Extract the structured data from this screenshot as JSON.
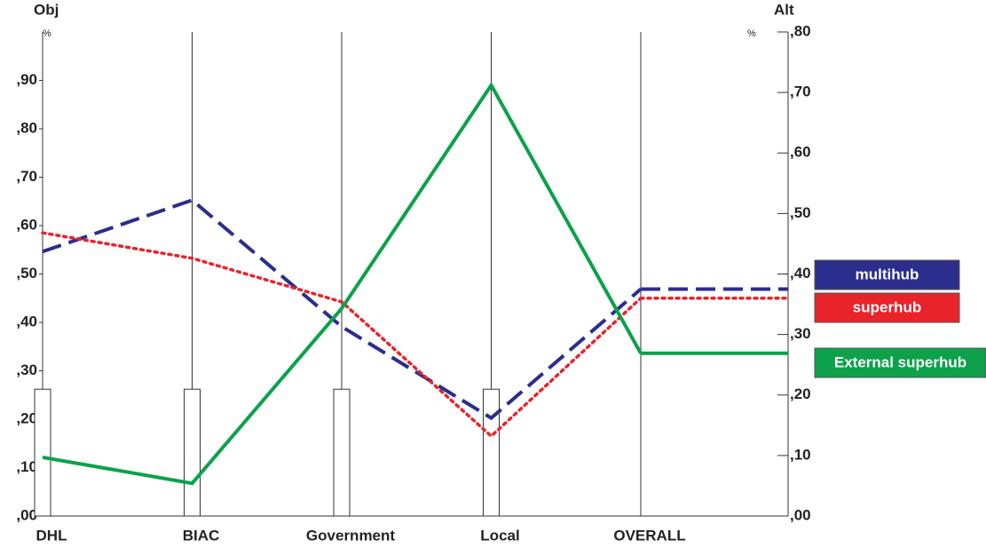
{
  "chart_data": {
    "type": "line",
    "y_label": "Obj",
    "y2_label": "Alt",
    "y_unit": "%",
    "y2_unit": "%",
    "categories": [
      "DHL",
      "BIAC",
      "Government",
      "Local",
      "OVERALL"
    ],
    "weights": [
      0.262,
      0.262,
      0.262,
      0.262,
      null
    ],
    "weight_color": "#ffffff",
    "series": [
      {
        "name": "multihub",
        "color": "#2b2e8c",
        "dash": "dashed",
        "axis": "y2",
        "values": [
          0.437,
          0.522,
          0.313,
          0.162,
          0.375
        ]
      },
      {
        "name": "superhub",
        "color": "#e8232a",
        "dash": "dotted",
        "axis": "y2",
        "values": [
          0.468,
          0.426,
          0.354,
          0.132,
          0.36
        ]
      },
      {
        "name": "External superhub",
        "color": "#0ca14a",
        "dash": "solid",
        "axis": "y2",
        "values": [
          0.097,
          0.054,
          0.343,
          0.712,
          0.269
        ]
      }
    ],
    "ylim": [
      0,
      1.0
    ],
    "yticks": [
      {
        "value": 0,
        "label": ",00"
      },
      {
        "value": 0.1,
        "label": ",10"
      },
      {
        "value": 0.2,
        "label": ",20"
      },
      {
        "value": 0.3,
        "label": ",30"
      },
      {
        "value": 0.4,
        "label": ",40"
      },
      {
        "value": 0.5,
        "label": ",50"
      },
      {
        "value": 0.6,
        "label": ",60"
      },
      {
        "value": 0.7,
        "label": ",70"
      },
      {
        "value": 0.8,
        "label": ",80"
      },
      {
        "value": 0.9,
        "label": ",90"
      }
    ],
    "y2lim": [
      0,
      0.8
    ],
    "y2ticks": [
      {
        "value": 0,
        "label": ",00"
      },
      {
        "value": 0.1,
        "label": ",10"
      },
      {
        "value": 0.2,
        "label": ",20"
      },
      {
        "value": 0.3,
        "label": ",30"
      },
      {
        "value": 0.4,
        "label": ",40"
      },
      {
        "value": 0.5,
        "label": ",50"
      },
      {
        "value": 0.6,
        "label": ",60"
      },
      {
        "value": 0.7,
        "label": ",70"
      },
      {
        "value": 0.8,
        "label": ",80"
      }
    ]
  }
}
